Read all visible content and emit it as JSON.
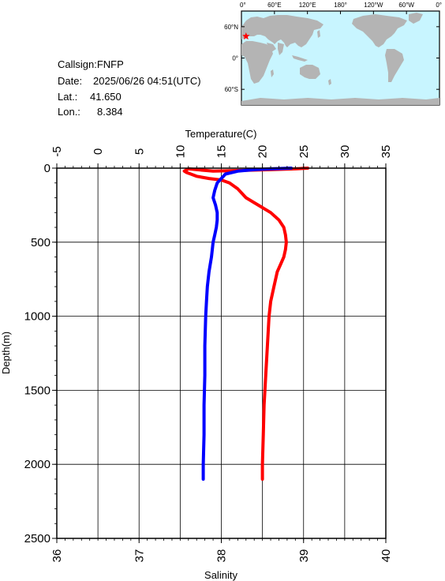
{
  "station": {
    "callsign": "Callsign:FNFP",
    "date_label": "Date:",
    "date_value": "2025/06/26 04:51(UTC)",
    "lat_label": "Lat.:",
    "lat_value": "41.650",
    "lon_label": "Lon.:",
    "lon_value": "8.384"
  },
  "map": {
    "top_labels": [
      "0°",
      "60°E",
      "120°E",
      "180°",
      "120°W",
      "60°W",
      "0°"
    ],
    "left_labels": [
      "60°N",
      "0°",
      "60°S"
    ],
    "right_labels": [
      "",
      "",
      ""
    ],
    "ocean_color": "#c8f5ff",
    "land_color": "#b4b4b4",
    "marker_color": "#ff0000",
    "marker": {
      "lon": 8.384,
      "lat": 41.65
    }
  },
  "chart_data": {
    "type": "line",
    "ylabel": "Depth(m)",
    "y_ticks": [
      0,
      500,
      1000,
      1500,
      2000,
      2500
    ],
    "ylim": [
      0,
      2500
    ],
    "y_inverted": true,
    "top_axis": {
      "label": "Temperature(C)",
      "ticks": [
        -5,
        0,
        5,
        10,
        15,
        20,
        25,
        30,
        35
      ],
      "range": [
        -5,
        35
      ]
    },
    "bottom_axis": {
      "label": "Salinity",
      "ticks": [
        36,
        37,
        38,
        39,
        40
      ],
      "range": [
        36,
        40
      ]
    },
    "grid": true,
    "series": [
      {
        "color": "#ff0000",
        "axis": "top",
        "points": [
          [
            25.5,
            0
          ],
          [
            24,
            5
          ],
          [
            21,
            10
          ],
          [
            18,
            15
          ],
          [
            14,
            20
          ],
          [
            11,
            5
          ],
          [
            10.5,
            20
          ],
          [
            10.8,
            30
          ],
          [
            11.3,
            40
          ],
          [
            12,
            55
          ],
          [
            13.5,
            70
          ],
          [
            15,
            80
          ],
          [
            16,
            100
          ],
          [
            17,
            140
          ],
          [
            18,
            200
          ],
          [
            19.5,
            250
          ],
          [
            21,
            300
          ],
          [
            22,
            350
          ],
          [
            22.6,
            400
          ],
          [
            22.8,
            450
          ],
          [
            22.9,
            500
          ],
          [
            22.8,
            550
          ],
          [
            22.6,
            600
          ],
          [
            22.2,
            650
          ],
          [
            21.8,
            700
          ],
          [
            21.4,
            800
          ],
          [
            21.0,
            900
          ],
          [
            20.8,
            1000
          ],
          [
            20.6,
            1200
          ],
          [
            20.4,
            1400
          ],
          [
            20.2,
            1600
          ],
          [
            20.1,
            1800
          ],
          [
            20.0,
            2000
          ],
          [
            20.0,
            2100
          ]
        ]
      },
      {
        "color": "#0000ff",
        "axis": "bottom",
        "points": [
          [
            38.85,
            0
          ],
          [
            38.6,
            5
          ],
          [
            38.4,
            10
          ],
          [
            38.2,
            20
          ],
          [
            38.05,
            40
          ],
          [
            38.0,
            70
          ],
          [
            37.95,
            100
          ],
          [
            37.92,
            150
          ],
          [
            37.9,
            200
          ],
          [
            37.93,
            250
          ],
          [
            37.95,
            300
          ],
          [
            37.95,
            350
          ],
          [
            37.94,
            400
          ],
          [
            37.92,
            450
          ],
          [
            37.9,
            500
          ],
          [
            37.88,
            600
          ],
          [
            37.85,
            700
          ],
          [
            37.83,
            800
          ],
          [
            37.82,
            900
          ],
          [
            37.81,
            1000
          ],
          [
            37.8,
            1200
          ],
          [
            37.8,
            1400
          ],
          [
            37.79,
            1600
          ],
          [
            37.79,
            1800
          ],
          [
            37.78,
            2000
          ],
          [
            37.78,
            2100
          ]
        ]
      }
    ]
  }
}
